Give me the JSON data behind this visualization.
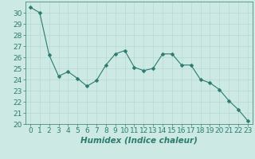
{
  "x": [
    0,
    1,
    2,
    3,
    4,
    5,
    6,
    7,
    8,
    9,
    10,
    11,
    12,
    13,
    14,
    15,
    16,
    17,
    18,
    19,
    20,
    21,
    22,
    23
  ],
  "y": [
    30.5,
    30.0,
    26.2,
    24.3,
    24.7,
    24.1,
    23.4,
    23.9,
    25.3,
    26.3,
    26.6,
    25.1,
    24.8,
    25.0,
    26.3,
    26.3,
    25.3,
    25.3,
    24.0,
    23.7,
    23.1,
    22.1,
    21.3,
    20.3
  ],
  "line_color": "#2d7b6e",
  "marker": "D",
  "marker_size": 2.5,
  "bg_color": "#cce9e4",
  "grid_color_major": "#b8d8d3",
  "grid_color_minor": "#cfdfd9",
  "xlabel": "Humidex (Indice chaleur)",
  "xlim": [
    -0.5,
    23.5
  ],
  "ylim": [
    20,
    31
  ],
  "yticks": [
    20,
    21,
    22,
    23,
    24,
    25,
    26,
    27,
    28,
    29,
    30
  ],
  "xticks": [
    0,
    1,
    2,
    3,
    4,
    5,
    6,
    7,
    8,
    9,
    10,
    11,
    12,
    13,
    14,
    15,
    16,
    17,
    18,
    19,
    20,
    21,
    22,
    23
  ],
  "tick_color": "#2d7b6e",
  "label_color": "#2d7b6e",
  "font_size": 6.5,
  "xlabel_fontsize": 7.5
}
